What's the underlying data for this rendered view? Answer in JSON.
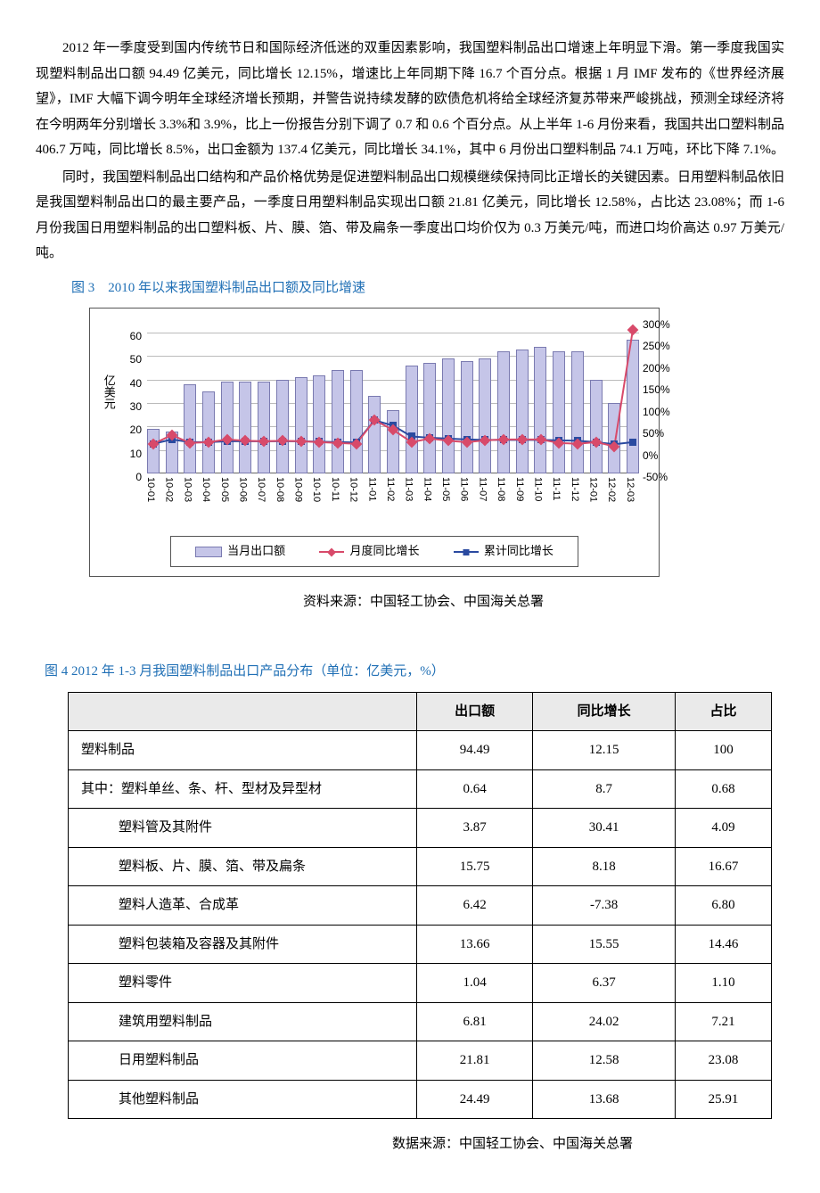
{
  "paragraphs": {
    "p1": "2012 年一季度受到国内传统节日和国际经济低迷的双重因素影响，我国塑料制品出口增速上年明显下滑。第一季度我国实现塑料制品出口额 94.49 亿美元，同比增长 12.15%，增速比上年同期下降 16.7 个百分点。根据 1 月 IMF 发布的《世界经济展望》，IMF 大幅下调今明年全球经济增长预期，并警告说持续发酵的欧债危机将给全球经济复苏带来严峻挑战，预测全球经济将在今明两年分别增长 3.3%和 3.9%，比上一份报告分别下调了 0.7 和 0.6 个百分点。从上半年 1-6 月份来看，我国共出口塑料制品 406.7 万吨，同比增长 8.5%，出口金额为 137.4 亿美元，同比增长 34.1%，其中 6 月份出口塑料制品 74.1 万吨，环比下降 7.1%。",
    "p2": "同时，我国塑料制品出口结构和产品价格优势是促进塑料制品出口规模继续保持同比正增长的关键因素。日用塑料制品依旧是我国塑料制品出口的最主要产品，一季度日用塑料制品实现出口额 21.81 亿美元，同比增长 12.58%，占比达 23.08%；而 1-6 月份我国日用塑料制品的出口塑料板、片、膜、箔、带及扁条一季度出口均价仅为 0.3 万美元/吨，而进口均价高达 0.97 万美元/吨。"
  },
  "fig3": {
    "title": "图 3　2010 年以来我国塑料制品出口额及同比增速",
    "y_left_label": "亿美元",
    "y_left_ticks": [
      0,
      10,
      20,
      30,
      40,
      50,
      60
    ],
    "y_left_max": 65,
    "y_right_ticks": [
      "-50%",
      "0%",
      "50%",
      "100%",
      "150%",
      "200%",
      "250%",
      "300%"
    ],
    "y_right_min": -50,
    "y_right_max": 300,
    "x_labels": [
      "10-01",
      "10-02",
      "10-03",
      "10-04",
      "10-05",
      "10-06",
      "10-07",
      "10-08",
      "10-09",
      "10-10",
      "10-11",
      "10-12",
      "11-01",
      "11-02",
      "11-03",
      "11-04",
      "11-05",
      "11-06",
      "11-07",
      "11-08",
      "11-09",
      "11-10",
      "11-11",
      "11-12",
      "12-01",
      "12-02",
      "12-03"
    ],
    "bars": [
      19,
      18,
      38,
      35,
      39,
      39,
      39,
      40,
      41,
      42,
      44,
      44,
      33,
      27,
      46,
      47,
      49,
      48,
      49,
      52,
      53,
      54,
      52,
      52,
      40,
      30,
      57
    ],
    "bar_color": "#c5c5e8",
    "bar_border": "#7a7ab0",
    "line_monthly": [
      18,
      38,
      20,
      22,
      28,
      25,
      24,
      25,
      24,
      22,
      20,
      18,
      72,
      50,
      22,
      30,
      25,
      22,
      26,
      28,
      28,
      28,
      20,
      18,
      22,
      12,
      280
    ],
    "line_monthly_color": "#d84a6a",
    "line_cum": [
      18,
      28,
      22,
      22,
      24,
      24,
      24,
      24,
      24,
      23,
      22,
      21,
      72,
      60,
      35,
      32,
      30,
      28,
      27,
      27,
      27,
      27,
      26,
      25,
      22,
      17,
      22
    ],
    "line_cum_color": "#2a4aa0",
    "legend": {
      "bar": "当月出口额",
      "monthly": "月度同比增长",
      "cum": "累计同比增长"
    },
    "source": "资料来源：中国轻工协会、中国海关总署",
    "grid_color": "#bbbbbb"
  },
  "fig4": {
    "title": "图 4 2012 年 1-3 月我国塑料制品出口产品分布（单位：亿美元，%）",
    "header": [
      "",
      "出口额",
      "同比增长",
      "占比"
    ],
    "rows": [
      {
        "indent": 1,
        "name": "塑料制品",
        "v": [
          "94.49",
          "12.15",
          "100"
        ]
      },
      {
        "indent": 1,
        "name": "其中：塑料单丝、条、杆、型材及异型材",
        "v": [
          "0.64",
          "8.7",
          "0.68"
        ]
      },
      {
        "indent": 2,
        "name": "塑料管及其附件",
        "v": [
          "3.87",
          "30.41",
          "4.09"
        ]
      },
      {
        "indent": 2,
        "name": "塑料板、片、膜、箔、带及扁条",
        "v": [
          "15.75",
          "8.18",
          "16.67"
        ]
      },
      {
        "indent": 2,
        "name": "塑料人造革、合成革",
        "v": [
          "6.42",
          "-7.38",
          "6.80"
        ]
      },
      {
        "indent": 2,
        "name": "塑料包装箱及容器及其附件",
        "v": [
          "13.66",
          "15.55",
          "14.46"
        ]
      },
      {
        "indent": 2,
        "name": "塑料零件",
        "v": [
          "1.04",
          "6.37",
          "1.10"
        ]
      },
      {
        "indent": 2,
        "name": "建筑用塑料制品",
        "v": [
          "6.81",
          "24.02",
          "7.21"
        ]
      },
      {
        "indent": 2,
        "name": "日用塑料制品",
        "v": [
          "21.81",
          "12.58",
          "23.08"
        ]
      },
      {
        "indent": 2,
        "name": "其他塑料制品",
        "v": [
          "24.49",
          "13.68",
          "25.91"
        ]
      }
    ],
    "source": "数据来源：中国轻工协会、中国海关总署"
  }
}
